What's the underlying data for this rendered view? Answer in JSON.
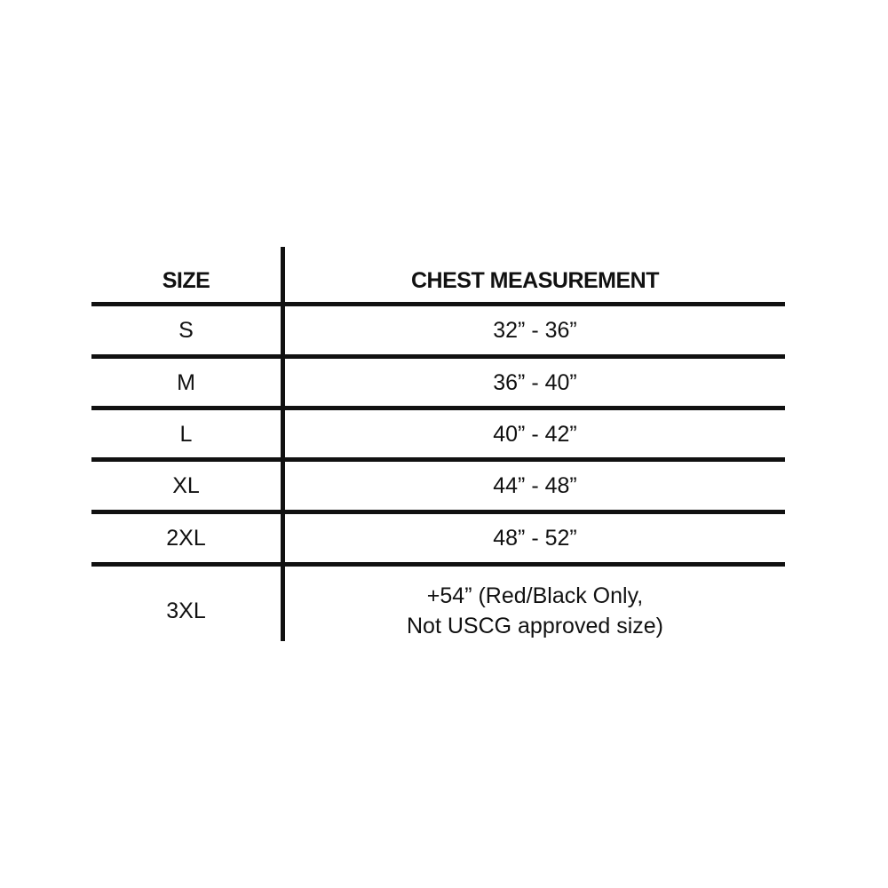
{
  "table": {
    "headers": [
      "SIZE",
      "CHEST MEASUREMENT"
    ],
    "rows": [
      {
        "size": "S",
        "chest": "32” - 36”"
      },
      {
        "size": "M",
        "chest": "36” - 40”"
      },
      {
        "size": "L",
        "chest": "40” - 42”"
      },
      {
        "size": "XL",
        "chest": "44” - 48”"
      },
      {
        "size": "2XL",
        "chest": "48” - 52”"
      },
      {
        "size": "3XL",
        "chest_line1": "+54” (Red/Black Only,",
        "chest_line2": "Not USCG approved size)"
      }
    ]
  }
}
